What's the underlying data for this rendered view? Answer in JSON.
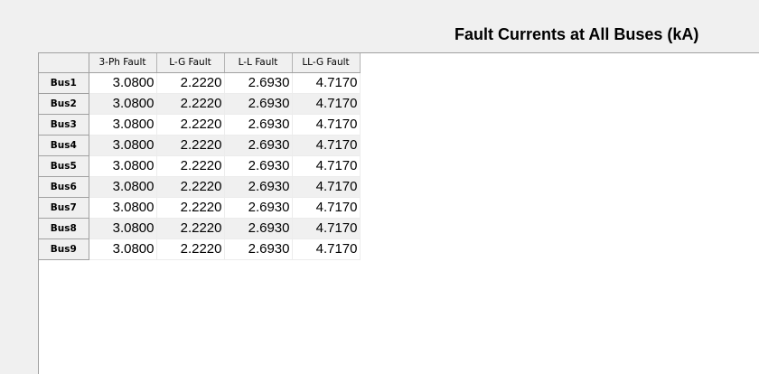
{
  "title": "Fault Currents at All Buses (kA)",
  "table": {
    "columns": [
      "3-Ph Fault",
      "L-G Fault",
      "L-L Fault",
      "LL-G Fault"
    ],
    "rows": [
      {
        "label": "Bus1",
        "values": [
          "3.0800",
          "2.2220",
          "2.6930",
          "4.7170"
        ]
      },
      {
        "label": "Bus2",
        "values": [
          "3.0800",
          "2.2220",
          "2.6930",
          "4.7170"
        ]
      },
      {
        "label": "Bus3",
        "values": [
          "3.0800",
          "2.2220",
          "2.6930",
          "4.7170"
        ]
      },
      {
        "label": "Bus4",
        "values": [
          "3.0800",
          "2.2220",
          "2.6930",
          "4.7170"
        ]
      },
      {
        "label": "Bus5",
        "values": [
          "3.0800",
          "2.2220",
          "2.6930",
          "4.7170"
        ]
      },
      {
        "label": "Bus6",
        "values": [
          "3.0800",
          "2.2220",
          "2.6930",
          "4.7170"
        ]
      },
      {
        "label": "Bus7",
        "values": [
          "3.0800",
          "2.2220",
          "2.6930",
          "4.7170"
        ]
      },
      {
        "label": "Bus8",
        "values": [
          "3.0800",
          "2.2220",
          "2.6930",
          "4.7170"
        ]
      },
      {
        "label": "Bus9",
        "values": [
          "3.0800",
          "2.2220",
          "2.6930",
          "4.7170"
        ]
      }
    ]
  }
}
